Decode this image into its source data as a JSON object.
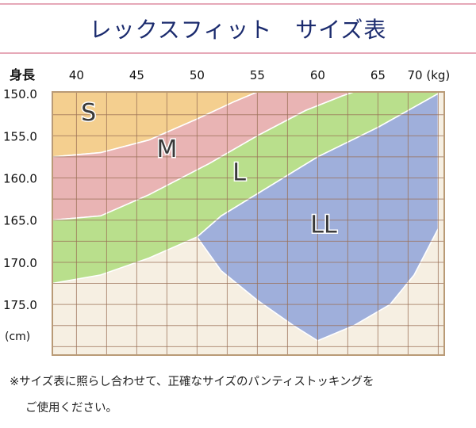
{
  "header": {
    "title": "レックスフィット　サイズ表"
  },
  "chart_data": {
    "type": "area",
    "title": "レックスフィット　サイズ表",
    "xlabel": "",
    "ylabel": "身長",
    "x_axis": {
      "ticks": [
        40,
        45,
        50,
        55,
        60,
        65,
        70
      ],
      "tick_labels": [
        "40",
        "45",
        "50",
        "55",
        "60",
        "65",
        "70 (kg)"
      ],
      "range": [
        40,
        70
      ],
      "position": "top"
    },
    "y_axis": {
      "ticks": [
        150,
        155,
        160,
        165,
        170,
        175
      ],
      "tick_labels": [
        "150.0",
        "155.0",
        "160.0",
        "165.0",
        "170.0",
        "175.0"
      ],
      "unit_label": "(cm)",
      "range": [
        149.8,
        181
      ],
      "inverted": true
    },
    "grid": true,
    "zones": [
      {
        "name": "S",
        "color": "#f4cf8f",
        "outline": [
          [
            38,
            149.8
          ],
          [
            55,
            149.8
          ],
          [
            55,
            149.8
          ],
          [
            53,
            151.0
          ],
          [
            50,
            153.0
          ],
          [
            46,
            155.5
          ],
          [
            42,
            157.0
          ],
          [
            38,
            157.5
          ]
        ]
      },
      {
        "name": "M",
        "color": "#e9b4b4",
        "outline": [
          [
            55,
            149.8
          ],
          [
            63,
            149.8
          ],
          [
            62,
            150.3
          ],
          [
            59,
            152.0
          ],
          [
            55,
            155.0
          ],
          [
            51,
            158.3
          ],
          [
            46,
            162.0
          ],
          [
            42,
            164.5
          ],
          [
            38,
            165.0
          ],
          [
            38,
            157.5
          ],
          [
            42,
            157.0
          ],
          [
            46,
            155.5
          ],
          [
            50,
            153.0
          ],
          [
            53,
            151.0
          ],
          [
            55,
            149.8
          ]
        ]
      },
      {
        "name": "L",
        "color": "#b9df8c",
        "outline": [
          [
            63,
            149.8
          ],
          [
            70,
            149.8
          ],
          [
            70,
            150.0
          ],
          [
            65,
            154.0
          ],
          [
            60,
            157.5
          ],
          [
            56,
            161.0
          ],
          [
            52,
            164.5
          ],
          [
            50,
            167.0
          ],
          [
            46,
            169.5
          ],
          [
            42,
            171.5
          ],
          [
            38,
            172.5
          ],
          [
            38,
            165.0
          ],
          [
            42,
            164.5
          ],
          [
            46,
            162.0
          ],
          [
            51,
            158.3
          ],
          [
            55,
            155.0
          ],
          [
            59,
            152.0
          ],
          [
            62,
            150.3
          ],
          [
            63,
            149.8
          ]
        ]
      },
      {
        "name": "LL",
        "color": "#9fafdb",
        "outline": [
          [
            70,
            150.0
          ],
          [
            70,
            166.0
          ],
          [
            68,
            171.5
          ],
          [
            66,
            175.0
          ],
          [
            63,
            177.5
          ],
          [
            60,
            179.3
          ],
          [
            58,
            177.5
          ],
          [
            55,
            174.5
          ],
          [
            52,
            171.0
          ],
          [
            50,
            167.0
          ],
          [
            52,
            164.5
          ],
          [
            56,
            161.0
          ],
          [
            60,
            157.5
          ],
          [
            65,
            154.0
          ],
          [
            70,
            150.0
          ]
        ]
      }
    ],
    "zone_labels": [
      {
        "text": "S",
        "x": 41,
        "y": 153.2
      },
      {
        "text": "M",
        "x": 47.5,
        "y": 157.5
      },
      {
        "text": "L",
        "x": 53.5,
        "y": 160.3
      },
      {
        "text": "LL",
        "x": 60.5,
        "y": 166.5
      }
    ],
    "background_color": "#f6efe2",
    "border_color": "#b99a76",
    "grid_color": "#9a6f55"
  },
  "footnote": {
    "line1": "※サイズ表に照らし合わせて、正確なサイズのパンティストッキングを",
    "line2": "ご使用ください。"
  }
}
